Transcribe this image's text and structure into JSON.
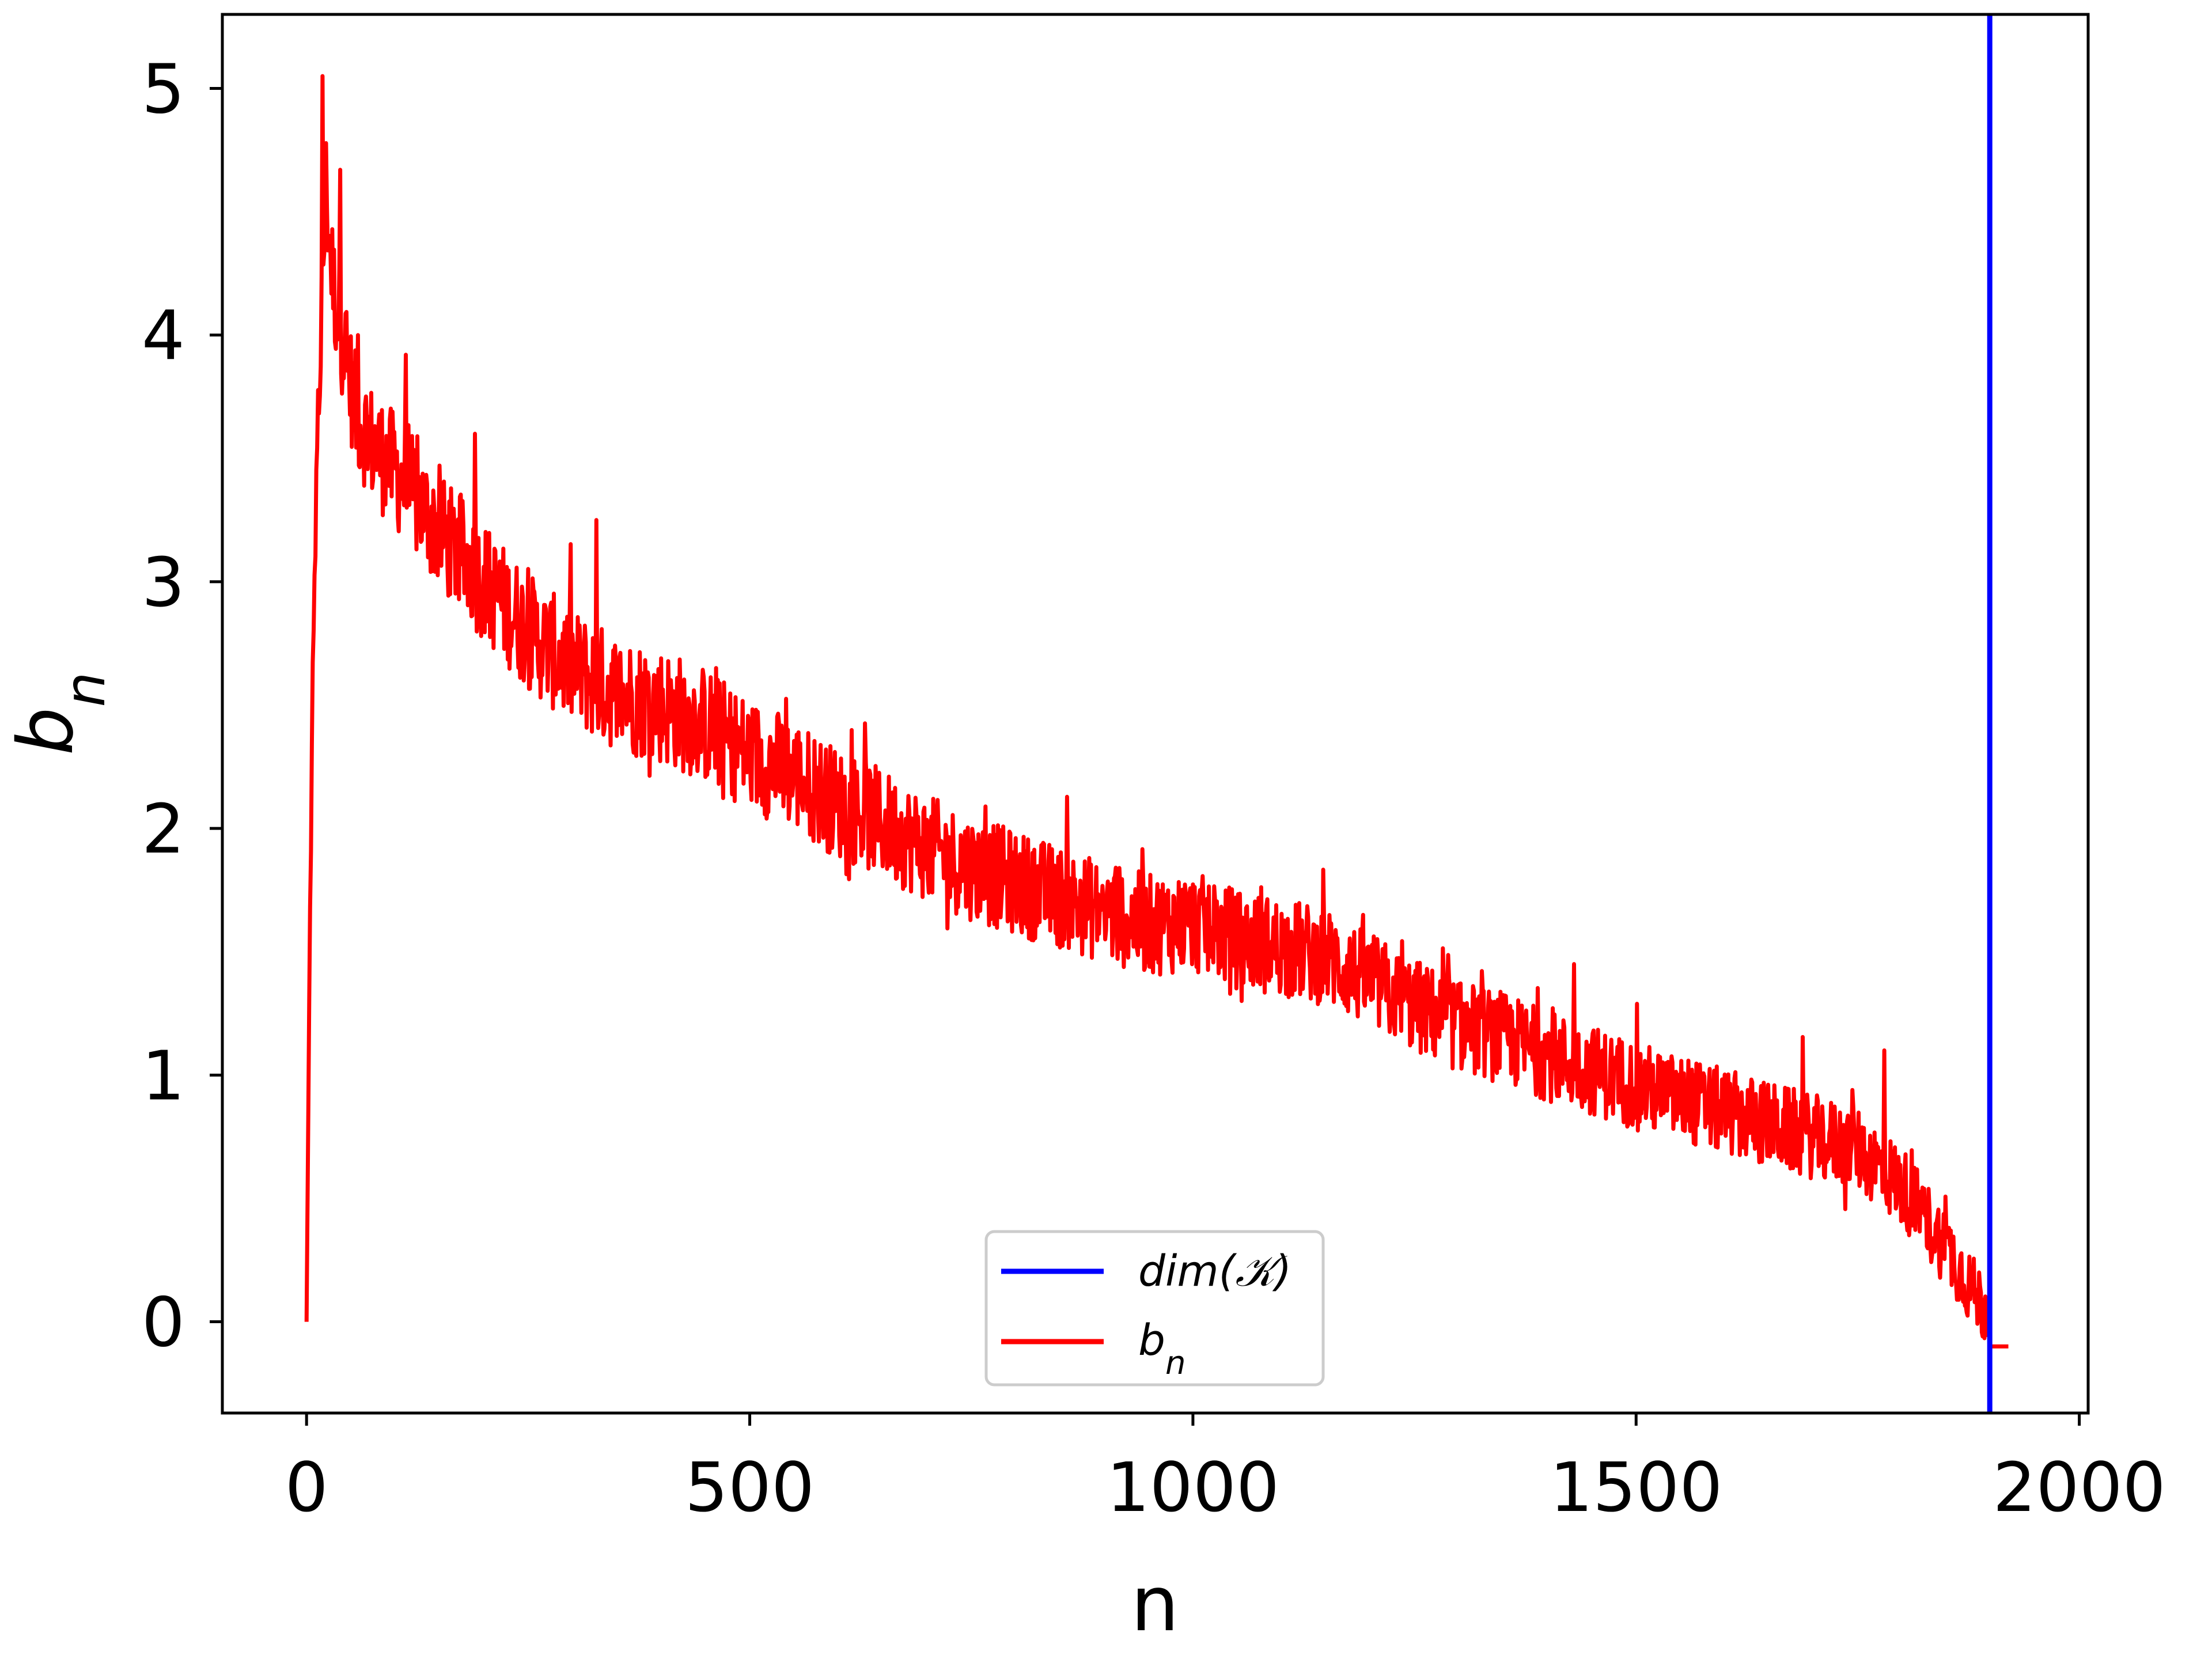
{
  "chart_data": {
    "type": "line",
    "xlabel": "n",
    "ylabel": "b",
    "ylabel_sub": "n",
    "xlim": [
      -95,
      2010
    ],
    "ylim": [
      -0.37,
      5.3
    ],
    "xticks": [
      0,
      500,
      1000,
      1500,
      2000
    ],
    "xtick_labels": [
      "0",
      "500",
      "1000",
      "1500",
      "2000"
    ],
    "yticks": [
      0,
      1,
      2,
      3,
      4,
      5
    ],
    "ytick_labels": [
      "0",
      "1",
      "2",
      "3",
      "4",
      "5"
    ],
    "grid": false,
    "legend_position": "lower-center",
    "series": [
      {
        "name": "dim(𝒦)",
        "color": "#0000ff",
        "kind": "vertical-line",
        "x": 1899
      },
      {
        "name": "b",
        "name_sub": "n",
        "color": "#ff0000",
        "kind": "noisy-line",
        "trend_x": [
          0,
          3,
          6,
          10,
          15,
          22,
          30,
          40,
          55,
          75,
          100,
          150,
          200,
          250,
          300,
          350,
          400,
          450,
          500,
          550,
          600,
          650,
          700,
          750,
          800,
          850,
          900,
          950,
          1000,
          1050,
          1100,
          1150,
          1200,
          1250,
          1300,
          1350,
          1400,
          1450,
          1500,
          1550,
          1600,
          1650,
          1700,
          1750,
          1800,
          1830,
          1860,
          1880,
          1895,
          1899,
          1905,
          1920
        ],
        "trend_y": [
          0,
          1.3,
          2.3,
          3.2,
          3.9,
          4.6,
          4.2,
          4.0,
          3.7,
          3.55,
          3.45,
          3.2,
          3.0,
          2.8,
          2.65,
          2.55,
          2.5,
          2.42,
          2.3,
          2.22,
          2.1,
          2.02,
          1.92,
          1.84,
          1.78,
          1.72,
          1.66,
          1.61,
          1.62,
          1.55,
          1.52,
          1.48,
          1.38,
          1.28,
          1.2,
          1.15,
          1.08,
          1.02,
          0.96,
          0.9,
          0.85,
          0.8,
          0.75,
          0.7,
          0.55,
          0.4,
          0.25,
          0.12,
          0.05,
          0.02,
          -0.1,
          -0.1
        ],
        "peaks": [
          {
            "x": 18,
            "y": 5.05
          },
          {
            "x": 38,
            "y": 4.67
          },
          {
            "x": 58,
            "y": 4.0
          },
          {
            "x": 112,
            "y": 3.92
          },
          {
            "x": 190,
            "y": 3.6
          },
          {
            "x": 327,
            "y": 3.25
          },
          {
            "x": 1430,
            "y": 1.45
          },
          {
            "x": 1780,
            "y": 1.1
          }
        ]
      }
    ],
    "legend": [
      {
        "label": "dim(𝒦)",
        "color": "#0000ff"
      },
      {
        "label": "b",
        "label_sub": "n",
        "color": "#ff0000"
      }
    ]
  }
}
